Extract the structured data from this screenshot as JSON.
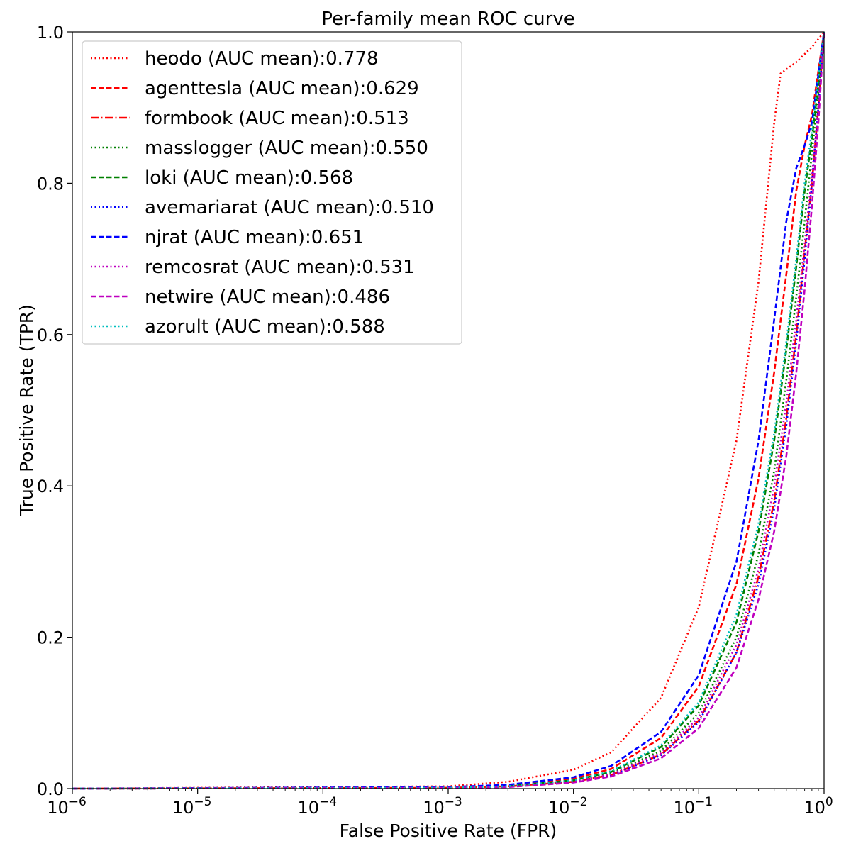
{
  "chart_data": {
    "type": "line",
    "title": "Per-family mean ROC curve",
    "xlabel": "False Positive Rate (FPR)",
    "ylabel": "True Positive Rate (TPR)",
    "xscale": "log",
    "xlim": [
      1e-06,
      1
    ],
    "ylim": [
      0,
      1
    ],
    "grid": false,
    "legend_position": "upper-left",
    "x_ticks": [
      {
        "value": 1e-06,
        "base": "10",
        "exp": "−6"
      },
      {
        "value": 1e-05,
        "base": "10",
        "exp": "−5"
      },
      {
        "value": 0.0001,
        "base": "10",
        "exp": "−4"
      },
      {
        "value": 0.001,
        "base": "10",
        "exp": "−3"
      },
      {
        "value": 0.01,
        "base": "10",
        "exp": "−2"
      },
      {
        "value": 0.1,
        "base": "10",
        "exp": "−1"
      },
      {
        "value": 1,
        "base": "10",
        "exp": "0"
      }
    ],
    "y_ticks": [
      {
        "value": 0.0,
        "label": "0.0"
      },
      {
        "value": 0.2,
        "label": "0.2"
      },
      {
        "value": 0.4,
        "label": "0.4"
      },
      {
        "value": 0.6,
        "label": "0.6"
      },
      {
        "value": 0.8,
        "label": "0.8"
      },
      {
        "value": 1.0,
        "label": "1.0"
      }
    ],
    "series": [
      {
        "name": "heodo (AUC mean):0.778",
        "color": "#ff0000",
        "dash": "dotted",
        "x": [
          1e-06,
          0.001,
          0.003,
          0.01,
          0.02,
          0.05,
          0.1,
          0.2,
          0.3,
          0.4,
          0.45,
          0.6,
          0.8,
          1.0
        ],
        "y": [
          0.0,
          0.003,
          0.009,
          0.025,
          0.048,
          0.12,
          0.24,
          0.46,
          0.67,
          0.88,
          0.945,
          0.96,
          0.98,
          1.0
        ]
      },
      {
        "name": "agenttesla (AUC mean):0.629",
        "color": "#ff0000",
        "dash": "dashed",
        "x": [
          1e-06,
          0.001,
          0.003,
          0.01,
          0.02,
          0.05,
          0.1,
          0.2,
          0.3,
          0.4,
          0.5,
          0.6,
          0.7,
          0.8,
          1.0
        ],
        "y": [
          0.0,
          0.001,
          0.004,
          0.013,
          0.026,
          0.067,
          0.135,
          0.27,
          0.41,
          0.55,
          0.68,
          0.79,
          0.85,
          0.89,
          1.0
        ]
      },
      {
        "name": "formbook (AUC mean):0.513",
        "color": "#ff0000",
        "dash": "dashdot",
        "x": [
          1e-06,
          0.001,
          0.003,
          0.01,
          0.02,
          0.05,
          0.1,
          0.2,
          0.3,
          0.4,
          0.5,
          0.6,
          0.7,
          0.8,
          0.9,
          1.0
        ],
        "y": [
          0.0,
          0.001,
          0.003,
          0.009,
          0.018,
          0.045,
          0.09,
          0.18,
          0.28,
          0.38,
          0.49,
          0.6,
          0.71,
          0.8,
          0.9,
          1.0
        ]
      },
      {
        "name": "masslogger (AUC mean):0.550",
        "color": "#008000",
        "dash": "dotted",
        "x": [
          1e-06,
          0.001,
          0.003,
          0.01,
          0.02,
          0.05,
          0.1,
          0.2,
          0.3,
          0.4,
          0.5,
          0.6,
          0.7,
          0.8,
          0.9,
          1.0
        ],
        "y": [
          0.0,
          0.001,
          0.003,
          0.01,
          0.02,
          0.05,
          0.1,
          0.2,
          0.31,
          0.42,
          0.54,
          0.65,
          0.75,
          0.84,
          0.92,
          1.0
        ]
      },
      {
        "name": "loki (AUC mean):0.568",
        "color": "#008000",
        "dash": "dashed",
        "x": [
          1e-06,
          0.001,
          0.003,
          0.01,
          0.02,
          0.05,
          0.1,
          0.2,
          0.3,
          0.4,
          0.5,
          0.6,
          0.7,
          0.8,
          0.9,
          1.0
        ],
        "y": [
          0.0,
          0.001,
          0.003,
          0.011,
          0.022,
          0.055,
          0.11,
          0.22,
          0.34,
          0.46,
          0.58,
          0.69,
          0.79,
          0.86,
          0.93,
          1.0
        ]
      },
      {
        "name": "avemariarat (AUC mean):0.510",
        "color": "#0000ff",
        "dash": "dotted",
        "x": [
          1e-06,
          0.001,
          0.003,
          0.01,
          0.02,
          0.05,
          0.1,
          0.2,
          0.3,
          0.4,
          0.5,
          0.6,
          0.7,
          0.8,
          0.9,
          1.0
        ],
        "y": [
          0.0,
          0.001,
          0.003,
          0.009,
          0.018,
          0.044,
          0.088,
          0.18,
          0.27,
          0.37,
          0.48,
          0.59,
          0.7,
          0.8,
          0.9,
          1.0
        ]
      },
      {
        "name": "njrat (AUC mean):0.651",
        "color": "#0000ff",
        "dash": "dashed",
        "x": [
          1e-06,
          0.001,
          0.003,
          0.01,
          0.02,
          0.05,
          0.1,
          0.2,
          0.3,
          0.4,
          0.5,
          0.6,
          0.7,
          0.8,
          1.0
        ],
        "y": [
          0.0,
          0.002,
          0.005,
          0.015,
          0.03,
          0.075,
          0.15,
          0.3,
          0.46,
          0.62,
          0.75,
          0.82,
          0.85,
          0.88,
          1.0
        ]
      },
      {
        "name": "remcosrat (AUC mean):0.531",
        "color": "#bf00bf",
        "dash": "dotted",
        "x": [
          1e-06,
          0.001,
          0.003,
          0.01,
          0.02,
          0.05,
          0.1,
          0.2,
          0.3,
          0.4,
          0.5,
          0.6,
          0.7,
          0.8,
          0.9,
          1.0
        ],
        "y": [
          0.0,
          0.001,
          0.003,
          0.009,
          0.019,
          0.047,
          0.094,
          0.19,
          0.29,
          0.4,
          0.51,
          0.62,
          0.72,
          0.81,
          0.9,
          1.0
        ]
      },
      {
        "name": "netwire (AUC mean):0.486",
        "color": "#bf00bf",
        "dash": "dashed",
        "x": [
          1e-06,
          0.001,
          0.003,
          0.01,
          0.02,
          0.05,
          0.1,
          0.2,
          0.3,
          0.4,
          0.5,
          0.6,
          0.7,
          0.8,
          0.9,
          1.0
        ],
        "y": [
          0.0,
          0.001,
          0.002,
          0.008,
          0.016,
          0.04,
          0.08,
          0.16,
          0.25,
          0.34,
          0.44,
          0.55,
          0.66,
          0.77,
          0.88,
          1.0
        ]
      },
      {
        "name": "azorult (AUC mean):0.588",
        "color": "#00bfbf",
        "dash": "dotted",
        "x": [
          1e-06,
          0.001,
          0.003,
          0.01,
          0.02,
          0.05,
          0.1,
          0.2,
          0.3,
          0.4,
          0.5,
          0.6,
          0.7,
          0.8,
          0.9,
          1.0
        ],
        "y": [
          0.0,
          0.001,
          0.003,
          0.011,
          0.023,
          0.057,
          0.114,
          0.23,
          0.35,
          0.47,
          0.59,
          0.7,
          0.8,
          0.87,
          0.94,
          1.0
        ]
      }
    ]
  }
}
